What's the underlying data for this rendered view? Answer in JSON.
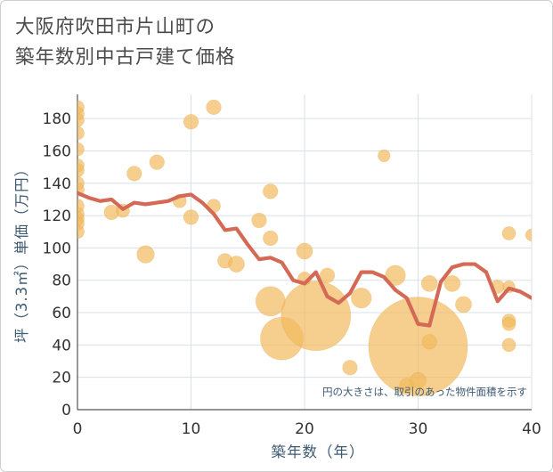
{
  "title_line1": "大阪府吹田市片山町の",
  "title_line2": "築年数別中古戸建て価格",
  "chart_data": {
    "type": "scatter",
    "xlabel": "築年数（年）",
    "ylabel": "坪（3.3㎡）単価（万円）",
    "xlim": [
      0,
      40
    ],
    "ylim": [
      0,
      195
    ],
    "xticks": [
      "0",
      "10",
      "20",
      "30",
      "40"
    ],
    "yticks": [
      "0",
      "20",
      "40",
      "60",
      "80",
      "100",
      "120",
      "140",
      "160",
      "180"
    ],
    "note": "円の大きさは、取引のあった物件面積を示す",
    "colors": {
      "bubble": "#f2b85a",
      "line": "#d46a55",
      "grid": "#d9e1e8",
      "border": "#cfcfcf"
    },
    "scatter": [
      {
        "x": 0,
        "y": 187,
        "size": 1
      },
      {
        "x": 0,
        "y": 183,
        "size": 1
      },
      {
        "x": 0,
        "y": 179,
        "size": 1
      },
      {
        "x": 0,
        "y": 171,
        "size": 1
      },
      {
        "x": 0,
        "y": 161,
        "size": 1
      },
      {
        "x": 0,
        "y": 151,
        "size": 1
      },
      {
        "x": 0,
        "y": 148,
        "size": 1
      },
      {
        "x": 0,
        "y": 140,
        "size": 1
      },
      {
        "x": 0,
        "y": 136,
        "size": 1
      },
      {
        "x": 0,
        "y": 126,
        "size": 1
      },
      {
        "x": 0,
        "y": 121,
        "size": 1
      },
      {
        "x": 0,
        "y": 118,
        "size": 1
      },
      {
        "x": 0,
        "y": 115,
        "size": 1
      },
      {
        "x": 0,
        "y": 110,
        "size": 1
      },
      {
        "x": 3,
        "y": 122,
        "size": 1.1
      },
      {
        "x": 4,
        "y": 123,
        "size": 1
      },
      {
        "x": 5,
        "y": 146,
        "size": 1.1
      },
      {
        "x": 6,
        "y": 96,
        "size": 1.3
      },
      {
        "x": 7,
        "y": 153,
        "size": 1.1
      },
      {
        "x": 9,
        "y": 129,
        "size": 1
      },
      {
        "x": 10,
        "y": 178,
        "size": 1.1
      },
      {
        "x": 10,
        "y": 119,
        "size": 1.1
      },
      {
        "x": 12,
        "y": 187,
        "size": 1.1
      },
      {
        "x": 12,
        "y": 126,
        "size": 1
      },
      {
        "x": 13,
        "y": 92,
        "size": 1.1
      },
      {
        "x": 14,
        "y": 90,
        "size": 1.2
      },
      {
        "x": 16,
        "y": 117,
        "size": 1.1
      },
      {
        "x": 17,
        "y": 135,
        "size": 1.1
      },
      {
        "x": 17,
        "y": 106,
        "size": 1.1
      },
      {
        "x": 17,
        "y": 67,
        "size": 2.2
      },
      {
        "x": 18,
        "y": 44,
        "size": 3.2
      },
      {
        "x": 20,
        "y": 98,
        "size": 1.2
      },
      {
        "x": 20,
        "y": 81,
        "size": 1
      },
      {
        "x": 21,
        "y": 58,
        "size": 5.2
      },
      {
        "x": 22,
        "y": 83,
        "size": 1.1
      },
      {
        "x": 24,
        "y": 26,
        "size": 1.1
      },
      {
        "x": 25,
        "y": 69,
        "size": 1.5
      },
      {
        "x": 27,
        "y": 157,
        "size": 0.9
      },
      {
        "x": 28,
        "y": 83,
        "size": 1.5
      },
      {
        "x": 29,
        "y": 15,
        "size": 1.1
      },
      {
        "x": 30,
        "y": 39,
        "size": 7.4
      },
      {
        "x": 30,
        "y": 18,
        "size": 1.2
      },
      {
        "x": 31,
        "y": 78,
        "size": 1.2
      },
      {
        "x": 31,
        "y": 42,
        "size": 1.1
      },
      {
        "x": 33,
        "y": 78,
        "size": 1.2
      },
      {
        "x": 34,
        "y": 65,
        "size": 1.2
      },
      {
        "x": 37,
        "y": 76,
        "size": 1
      },
      {
        "x": 38,
        "y": 109,
        "size": 1
      },
      {
        "x": 38,
        "y": 76,
        "size": 0.9
      },
      {
        "x": 38,
        "y": 55,
        "size": 1
      },
      {
        "x": 38,
        "y": 53,
        "size": 1
      },
      {
        "x": 38,
        "y": 40,
        "size": 1
      },
      {
        "x": 40,
        "y": 108,
        "size": 0.9
      }
    ],
    "line": {
      "x": [
        0,
        1,
        2,
        3,
        4,
        5,
        6,
        7,
        8,
        9,
        10,
        11,
        12,
        13,
        14,
        15,
        16,
        17,
        18,
        19,
        20,
        21,
        22,
        23,
        24,
        25,
        26,
        27,
        28,
        29,
        30,
        31,
        32,
        33,
        34,
        35,
        36,
        37,
        38,
        39,
        40
      ],
      "y": [
        134,
        131,
        129,
        130,
        124,
        128,
        127,
        128,
        129,
        132,
        133,
        128,
        121,
        111,
        112,
        102,
        93,
        94,
        91,
        80,
        78,
        85,
        70,
        66,
        72,
        85,
        85,
        82,
        74,
        69,
        53,
        52,
        79,
        88,
        90,
        90,
        85,
        67,
        75,
        73,
        69
      ]
    }
  }
}
